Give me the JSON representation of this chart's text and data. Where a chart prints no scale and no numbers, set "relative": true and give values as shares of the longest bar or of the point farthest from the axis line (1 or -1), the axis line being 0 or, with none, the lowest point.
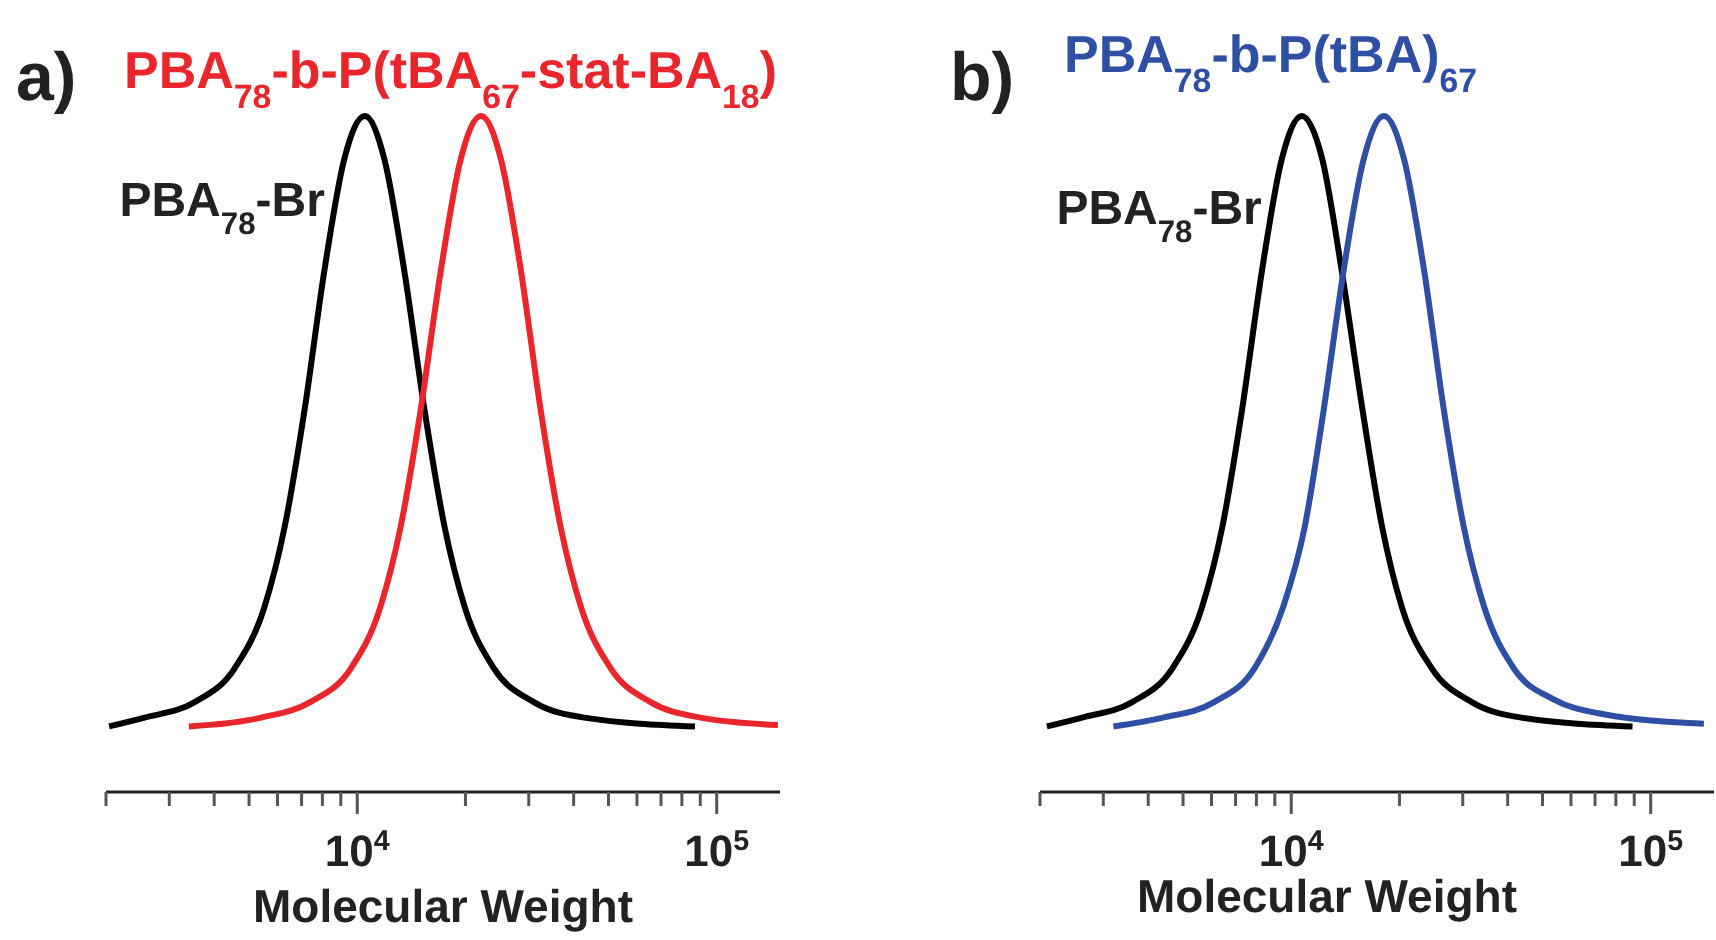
{
  "chart_data": [
    {
      "type": "line",
      "title": "a)",
      "xlabel": "Molecular Weight",
      "relative": true,
      "log": "x",
      "xlim": [
        2000,
        150000
      ],
      "xticks": [
        {
          "value": 2000,
          "label": null
        },
        {
          "value": 3000,
          "label": null
        },
        {
          "value": 4000,
          "label": null
        },
        {
          "value": 5000,
          "label": null
        },
        {
          "value": 6000,
          "label": null
        },
        {
          "value": 7000,
          "label": null
        },
        {
          "value": 8000,
          "label": null
        },
        {
          "value": 9000,
          "label": null
        },
        {
          "value": 10000,
          "label": "10$^{4}$"
        },
        {
          "value": 20000,
          "label": null
        },
        {
          "value": 30000,
          "label": null
        },
        {
          "value": 40000,
          "label": null
        },
        {
          "value": 50000,
          "label": null
        },
        {
          "value": 60000,
          "label": null
        },
        {
          "value": 70000,
          "label": null
        },
        {
          "value": 80000,
          "label": null
        },
        {
          "value": 90000,
          "label": null
        },
        {
          "value": 100000,
          "label": "10$^{5}$"
        }
      ],
      "series": [
        {
          "name": "PBA$_{78}$-Br",
          "color": "#000000",
          "x": [
            2040,
            2560,
            3530,
            4560,
            5520,
            6280,
            7130,
            8110,
            9200,
            10500,
            11900,
            13500,
            15400,
            17500,
            19900,
            24000,
            31000,
            42800,
            87000
          ],
          "values": [
            0.097,
            0.11,
            0.133,
            0.183,
            0.274,
            0.392,
            0.564,
            0.773,
            0.936,
            1,
            0.936,
            0.773,
            0.564,
            0.392,
            0.274,
            0.183,
            0.133,
            0.11,
            0.097
          ]
        },
        {
          "name": "PBA$_{78}$-b-P(tBA$_{67}$-stat-BA$_{18}$)",
          "color": "#e8262c",
          "x": [
            3400,
            5400,
            7400,
            9600,
            11600,
            13200,
            15000,
            17100,
            19400,
            22100,
            25100,
            28500,
            32400,
            36800,
            41900,
            50700,
            65500,
            90200,
            148000
          ],
          "values": [
            0.097,
            0.11,
            0.133,
            0.183,
            0.274,
            0.392,
            0.564,
            0.773,
            0.936,
            1,
            0.936,
            0.773,
            0.564,
            0.392,
            0.274,
            0.183,
            0.133,
            0.11,
            0.099
          ]
        }
      ]
    },
    {
      "type": "line",
      "title": "b)",
      "xlabel": "Molecular Weight",
      "relative": true,
      "log": "x",
      "xlim": [
        2000,
        150000
      ],
      "xticks": [
        {
          "value": 2000,
          "label": null
        },
        {
          "value": 3000,
          "label": null
        },
        {
          "value": 4000,
          "label": null
        },
        {
          "value": 5000,
          "label": null
        },
        {
          "value": 6000,
          "label": null
        },
        {
          "value": 7000,
          "label": null
        },
        {
          "value": 8000,
          "label": null
        },
        {
          "value": 9000,
          "label": null
        },
        {
          "value": 10000,
          "label": "10$^{4}$"
        },
        {
          "value": 20000,
          "label": null
        },
        {
          "value": 30000,
          "label": null
        },
        {
          "value": 40000,
          "label": null
        },
        {
          "value": 50000,
          "label": null
        },
        {
          "value": 60000,
          "label": null
        },
        {
          "value": 70000,
          "label": null
        },
        {
          "value": 80000,
          "label": null
        },
        {
          "value": 90000,
          "label": null
        },
        {
          "value": 100000,
          "label": "10$^{5}$"
        }
      ],
      "series": [
        {
          "name": "PBA$_{78}$-Br",
          "color": "#000000",
          "x": [
            2090,
            2620,
            3610,
            4670,
            5650,
            6430,
            7290,
            8300,
            9410,
            10700,
            12200,
            13800,
            15800,
            17900,
            20300,
            24600,
            31800,
            43700,
            89000
          ],
          "values": [
            0.097,
            0.11,
            0.133,
            0.183,
            0.274,
            0.392,
            0.564,
            0.773,
            0.936,
            1,
            0.936,
            0.773,
            0.564,
            0.392,
            0.274,
            0.183,
            0.133,
            0.11,
            0.097
          ]
        },
        {
          "name": "PBA$_{78}$-b-P(tBA)$_{67}$",
          "color": "#2e4fa3",
          "x": [
            3200,
            4400,
            6100,
            7900,
            9500,
            10900,
            12300,
            14000,
            15900,
            18100,
            20600,
            23400,
            26600,
            30200,
            34400,
            41600,
            53700,
            74000,
            140600
          ],
          "values": [
            0.097,
            0.11,
            0.133,
            0.183,
            0.274,
            0.392,
            0.564,
            0.773,
            0.936,
            1,
            0.936,
            0.773,
            0.564,
            0.392,
            0.274,
            0.183,
            0.137,
            0.115,
            0.101
          ]
        }
      ]
    }
  ]
}
